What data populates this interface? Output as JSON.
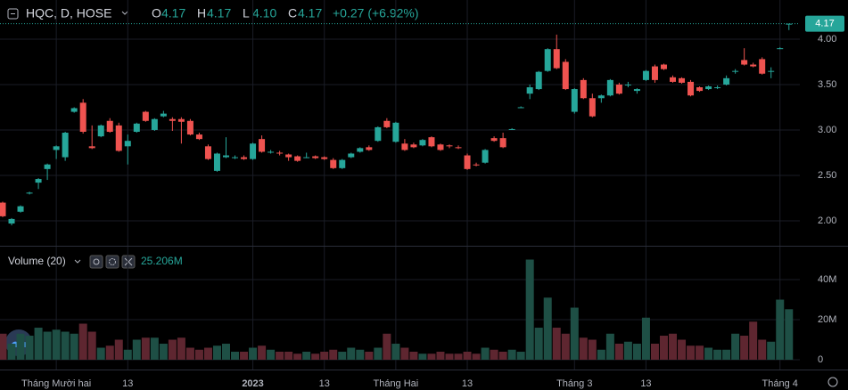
{
  "header": {
    "symbol": "HQC, D, HOSE",
    "ohlc": [
      {
        "label": "O",
        "value": "4.17"
      },
      {
        "label": "H",
        "value": "4.17"
      },
      {
        "label": "L",
        "value": "4.10"
      },
      {
        "label": "C",
        "value": "4.17"
      }
    ],
    "change": "+0.27 (+6.92%)"
  },
  "chart_data": [
    {
      "type": "candlestick",
      "up_color": "#26a69a",
      "down_color": "#ef5350",
      "grid": true,
      "categories": [
        null,
        null,
        null,
        null,
        null,
        null,
        "Tháng Mười hai",
        null,
        null,
        null,
        null,
        null,
        null,
        null,
        "13",
        null,
        null,
        null,
        null,
        null,
        null,
        null,
        null,
        null,
        null,
        null,
        null,
        null,
        "2023",
        null,
        null,
        null,
        null,
        null,
        null,
        null,
        "13",
        null,
        null,
        null,
        null,
        null,
        null,
        null,
        "Tháng Hai",
        null,
        null,
        null,
        null,
        null,
        null,
        null,
        "13",
        null,
        null,
        null,
        null,
        null,
        null,
        null,
        null,
        null,
        null,
        null,
        "Tháng 3",
        null,
        null,
        null,
        null,
        null,
        null,
        null,
        "13",
        null,
        null,
        null,
        null,
        null,
        null,
        null,
        null,
        null,
        null,
        null,
        null,
        null,
        null,
        "Tháng 4",
        null
      ],
      "open": [
        2.2,
        1.97,
        2.1,
        2.3,
        2.42,
        2.57,
        2.78,
        2.7,
        3.2,
        3.3,
        2.82,
        2.93,
        3.1,
        3.05,
        2.82,
        2.98,
        3.2,
        3.0,
        3.15,
        3.12,
        3.12,
        3.1,
        2.95,
        2.82,
        2.55,
        2.7,
        2.7,
        2.7,
        2.68,
        2.9,
        2.76,
        2.75,
        2.73,
        2.71,
        2.7,
        2.71,
        2.7,
        2.67,
        2.58,
        2.7,
        2.76,
        2.81,
        2.88,
        3.1,
        2.87,
        2.85,
        2.84,
        2.83,
        2.92,
        2.84,
        2.83,
        2.81,
        2.72,
        2.62,
        2.64,
        2.91,
        2.91,
        3.01,
        3.25,
        3.4,
        3.45,
        3.65,
        3.89,
        3.75,
        3.2,
        3.55,
        3.35,
        3.35,
        3.38,
        3.5,
        3.5,
        3.43,
        3.55,
        3.7,
        3.72,
        3.58,
        3.57,
        3.53,
        3.47,
        3.45,
        3.47,
        3.5,
        3.65,
        3.77,
        3.72,
        3.78,
        3.64,
        3.9,
        4.17
      ],
      "high": [
        2.21,
        2.03,
        2.17,
        2.32,
        2.47,
        2.63,
        2.83,
        2.98,
        3.25,
        3.34,
        3.05,
        3.06,
        3.13,
        3.08,
        2.95,
        3.08,
        3.21,
        3.13,
        3.21,
        3.14,
        3.14,
        3.12,
        2.97,
        2.84,
        2.75,
        2.92,
        2.72,
        2.72,
        2.86,
        2.94,
        2.78,
        2.77,
        2.74,
        2.72,
        2.75,
        2.72,
        2.71,
        2.69,
        2.68,
        2.75,
        2.81,
        2.83,
        3.04,
        3.13,
        3.09,
        2.9,
        2.86,
        2.9,
        2.93,
        2.85,
        2.84,
        2.83,
        2.74,
        2.64,
        2.79,
        2.93,
        2.97,
        3.02,
        3.26,
        3.5,
        3.65,
        3.9,
        4.05,
        3.78,
        3.46,
        3.57,
        3.4,
        3.39,
        3.56,
        3.52,
        3.53,
        3.46,
        3.66,
        3.72,
        3.73,
        3.6,
        3.58,
        3.55,
        3.48,
        3.49,
        3.49,
        3.6,
        3.67,
        3.9,
        3.74,
        3.8,
        3.69,
        3.91,
        4.17
      ],
      "low": [
        2.04,
        1.95,
        2.09,
        2.29,
        2.35,
        2.45,
        2.68,
        2.66,
        3.19,
        2.96,
        2.79,
        2.92,
        2.97,
        2.76,
        2.62,
        2.97,
        3.09,
        2.99,
        3.14,
        2.99,
        2.85,
        2.94,
        2.89,
        2.67,
        2.54,
        2.69,
        2.68,
        2.67,
        2.67,
        2.75,
        2.74,
        2.72,
        2.66,
        2.65,
        2.69,
        2.68,
        2.67,
        2.57,
        2.57,
        2.69,
        2.75,
        2.77,
        2.87,
        3.02,
        2.86,
        2.77,
        2.8,
        2.82,
        2.81,
        2.77,
        2.8,
        2.79,
        2.56,
        2.6,
        2.63,
        2.87,
        2.8,
        3.0,
        3.24,
        3.34,
        3.44,
        3.64,
        3.67,
        3.44,
        3.18,
        3.34,
        3.14,
        3.3,
        3.37,
        3.39,
        3.47,
        3.4,
        3.54,
        3.52,
        3.66,
        3.52,
        3.51,
        3.37,
        3.42,
        3.44,
        3.45,
        3.49,
        3.62,
        3.71,
        3.69,
        3.61,
        3.57,
        3.89,
        4.1
      ],
      "close": [
        2.05,
        2.02,
        2.16,
        2.31,
        2.46,
        2.62,
        2.82,
        2.97,
        3.24,
        2.98,
        2.8,
        3.05,
        2.98,
        2.77,
        2.88,
        3.07,
        3.1,
        3.12,
        3.18,
        3.1,
        3.09,
        2.95,
        2.9,
        2.68,
        2.74,
        2.72,
        2.7,
        2.68,
        2.85,
        2.76,
        2.76,
        2.74,
        2.7,
        2.66,
        2.7,
        2.69,
        2.68,
        2.58,
        2.67,
        2.74,
        2.8,
        2.78,
        3.03,
        3.03,
        3.08,
        2.78,
        2.81,
        2.89,
        2.82,
        2.78,
        2.82,
        2.8,
        2.57,
        2.61,
        2.78,
        2.88,
        2.81,
        3.01,
        3.25,
        3.47,
        3.64,
        3.89,
        3.68,
        3.45,
        3.45,
        3.35,
        3.15,
        3.38,
        3.55,
        3.4,
        3.5,
        3.45,
        3.65,
        3.55,
        3.67,
        3.53,
        3.52,
        3.38,
        3.43,
        3.48,
        3.47,
        3.57,
        3.65,
        3.72,
        3.7,
        3.62,
        3.65,
        3.9,
        4.17
      ],
      "ylim": [
        1.735,
        4.431
      ],
      "yticks": [
        {
          "value": 2,
          "label": "2.00"
        },
        {
          "value": 2.5,
          "label": "2.50"
        },
        {
          "value": 3,
          "label": "3.00"
        },
        {
          "value": 3.5,
          "label": "3.50"
        },
        {
          "value": 4,
          "label": "4.00"
        }
      ]
    },
    {
      "type": "bar",
      "title": "Volume (20)",
      "legend_value": "25.206M",
      "up_color": "#1e4f45",
      "down_color": "#5e2630",
      "values": [
        13,
        8,
        13,
        12,
        16,
        14,
        15,
        14,
        13,
        18,
        14,
        6,
        7,
        10,
        5,
        10,
        11,
        11,
        8,
        10,
        11,
        6,
        5,
        6,
        7,
        8,
        4,
        4,
        6,
        7,
        5,
        4,
        4,
        3,
        4,
        3,
        4,
        5,
        4,
        6,
        5,
        4,
        6,
        13,
        8,
        6,
        4,
        3,
        3,
        4,
        3,
        3,
        4,
        3,
        6,
        5,
        4,
        5,
        4,
        50,
        16,
        31,
        16,
        13,
        26,
        11,
        10,
        5,
        13,
        8,
        9,
        8,
        21,
        8,
        12,
        13,
        10,
        7,
        7,
        6,
        5,
        5,
        13,
        12,
        19,
        10,
        9,
        30,
        25.206
      ],
      "ylim": [
        -4,
        52.9
      ],
      "yticks": [
        0,
        {
          "value": 20,
          "label": "20M"
        },
        {
          "value": 40,
          "label": "40M"
        }
      ]
    }
  ]
}
